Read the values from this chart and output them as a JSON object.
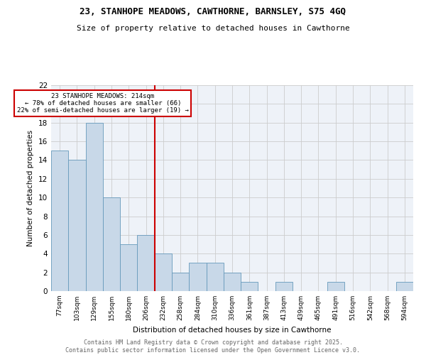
{
  "title_line1": "23, STANHOPE MEADOWS, CAWTHORNE, BARNSLEY, S75 4GQ",
  "title_line2": "Size of property relative to detached houses in Cawthorne",
  "xlabel": "Distribution of detached houses by size in Cawthorne",
  "ylabel": "Number of detached properties",
  "categories": [
    "77sqm",
    "103sqm",
    "129sqm",
    "155sqm",
    "180sqm",
    "206sqm",
    "232sqm",
    "258sqm",
    "284sqm",
    "310sqm",
    "336sqm",
    "361sqm",
    "387sqm",
    "413sqm",
    "439sqm",
    "465sqm",
    "491sqm",
    "516sqm",
    "542sqm",
    "568sqm",
    "594sqm"
  ],
  "values": [
    15,
    14,
    18,
    10,
    5,
    6,
    4,
    2,
    3,
    3,
    2,
    1,
    0,
    1,
    0,
    0,
    1,
    0,
    0,
    0,
    1
  ],
  "bar_color": "#c8d8e8",
  "bar_edge_color": "#6699bb",
  "grid_color": "#cccccc",
  "vline_x": 5.5,
  "vline_color": "#cc0000",
  "annotation_text": "23 STANHOPE MEADOWS: 214sqm\n← 78% of detached houses are smaller (66)\n22% of semi-detached houses are larger (19) →",
  "annotation_box_color": "#cc0000",
  "ylim": [
    0,
    22
  ],
  "yticks": [
    0,
    2,
    4,
    6,
    8,
    10,
    12,
    14,
    16,
    18,
    20,
    22
  ],
  "footer_line1": "Contains HM Land Registry data © Crown copyright and database right 2025.",
  "footer_line2": "Contains public sector information licensed under the Open Government Licence v3.0.",
  "bg_color": "#eef2f8",
  "title_fontsize": 9,
  "subtitle_fontsize": 8,
  "footer_fontsize": 6
}
